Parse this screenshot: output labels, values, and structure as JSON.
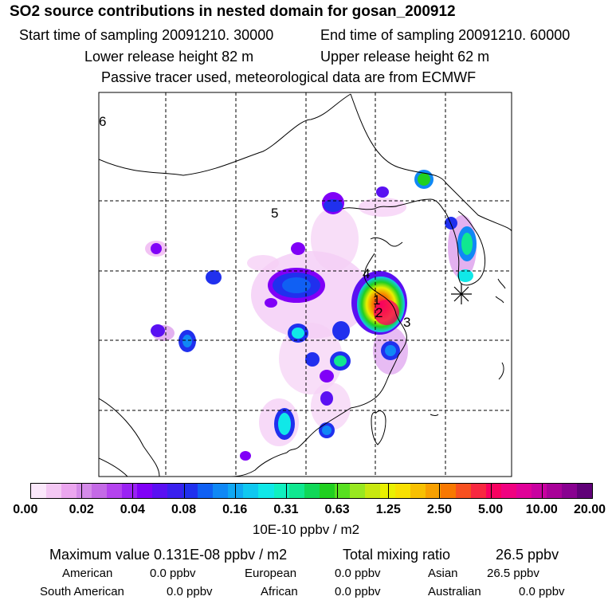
{
  "title": "SO2 source contributions in nested domain for gosan_200912",
  "header": {
    "start_time": "Start time of sampling 20091210. 30000",
    "end_time": "End time of sampling 20091210. 60000",
    "lower_height": "Lower release height   82 m",
    "upper_height": "Upper release height   62 m",
    "note": "Passive tracer used, meteorological data are from ECMWF"
  },
  "map": {
    "labels": [
      "6",
      "5",
      "4",
      "1",
      "2",
      "3"
    ],
    "station_marker": "asterisk-station-icon"
  },
  "colorbar": {
    "colors": [
      "#fbe8fb",
      "#f4c8f4",
      "#eba6ef",
      "#d58be9",
      "#c46ae6",
      "#b443ee",
      "#9a22f3",
      "#8000f7",
      "#5a10f2",
      "#3a20ee",
      "#2030ee",
      "#1060f3",
      "#1088f5",
      "#10a8f3",
      "#10c8f0",
      "#10e8e8",
      "#10f0c0",
      "#10e890",
      "#10d858",
      "#20d020",
      "#58e020",
      "#98e820",
      "#c8e810",
      "#eaf000",
      "#f8e000",
      "#f8c000",
      "#f8a000",
      "#f87800",
      "#f85020",
      "#f82840",
      "#f80060",
      "#f00080",
      "#e00098",
      "#c800a0",
      "#a80098",
      "#880090",
      "#600078"
    ],
    "ticks": [
      "0.00",
      "0.02",
      "0.04",
      "0.08",
      "0.16",
      "0.31",
      "0.63",
      "1.25",
      "2.50",
      "5.00",
      "10.00",
      "20.00"
    ],
    "unit": "10E-10 ppbv / m2"
  },
  "summary": {
    "max_label": "Maximum value  0.131E-08 ppbv / m2",
    "total_label": "Total mixing ratio",
    "total_value": "26.5 ppbv"
  },
  "contributions": [
    {
      "region": "American",
      "value": "0.0 ppbv"
    },
    {
      "region": "European",
      "value": "0.0 ppbv"
    },
    {
      "region": "Asian",
      "value": "26.5 ppbv"
    },
    {
      "region": "South American",
      "value": "0.0 ppbv"
    },
    {
      "region": "African",
      "value": "0.0 ppbv"
    },
    {
      "region": "Australian",
      "value": "0.0 ppbv"
    }
  ]
}
